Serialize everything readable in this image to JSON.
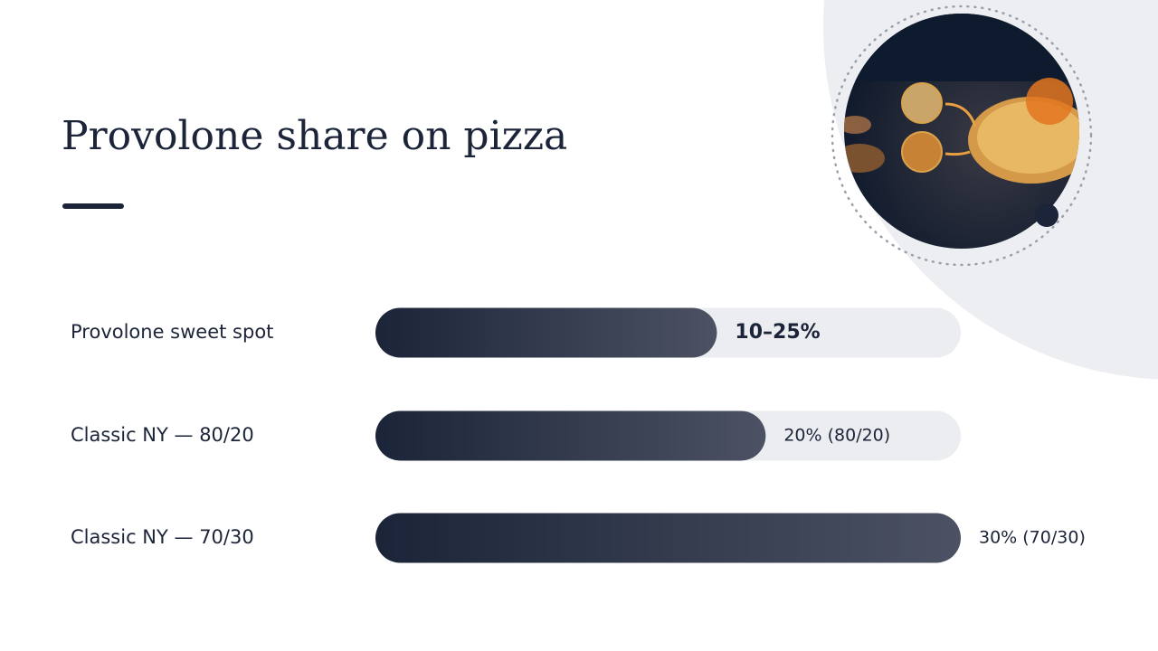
{
  "chart_data": {
    "type": "bar",
    "orientation": "horizontal",
    "title": "Provolone share on pizza",
    "categories": [
      "Provolone sweet spot",
      "Classic NY — 80/20",
      "Classic NY — 70/30"
    ],
    "values": [
      17.5,
      20,
      30
    ],
    "value_labels": [
      "10–25%",
      "20% (80/20)",
      "30% (70/30)"
    ],
    "xlim": [
      0,
      30
    ],
    "color": "#1b2438"
  }
}
